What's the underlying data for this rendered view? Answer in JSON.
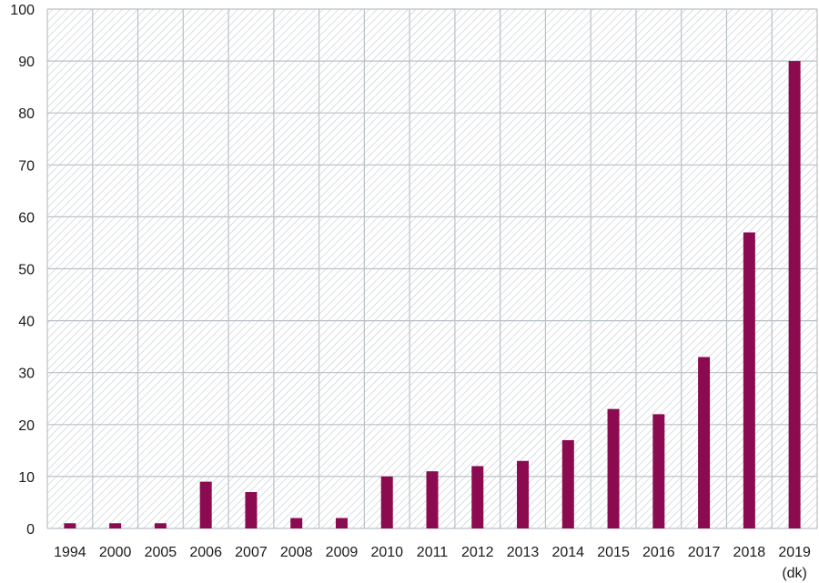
{
  "chart_data": {
    "type": "bar",
    "title": "",
    "xlabel": "",
    "ylabel": "",
    "categories": [
      "1994",
      "2000",
      "2005",
      "2006",
      "2007",
      "2008",
      "2009",
      "2010",
      "2011",
      "2012",
      "2013",
      "2014",
      "2015",
      "2016",
      "2017",
      "2018",
      "2019"
    ],
    "category_notes": [
      "",
      "",
      "",
      "",
      "",
      "",
      "",
      "",
      "",
      "",
      "",
      "",
      "",
      "",
      "",
      "",
      "(dk)"
    ],
    "values": [
      1,
      1,
      1,
      9,
      7,
      2,
      2,
      10,
      11,
      12,
      13,
      17,
      23,
      22,
      33,
      57,
      90
    ],
    "ylim": [
      0,
      100
    ],
    "yticks": [
      0,
      10,
      20,
      30,
      40,
      50,
      60,
      70,
      80,
      90,
      100
    ],
    "grid": true,
    "legend": "none",
    "colors": {
      "bar": "#8b0a50",
      "grid": "#b9c1c6",
      "hatch": "#c3c9cd",
      "axis_text": "#1a1a1a"
    }
  }
}
